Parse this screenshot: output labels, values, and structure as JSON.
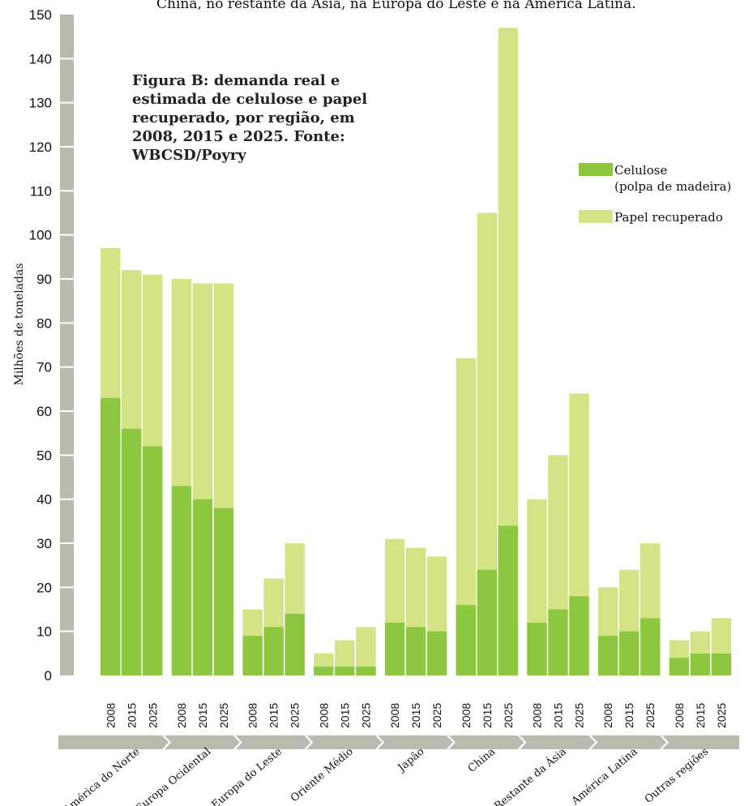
{
  "caption_top": "China, no restante da Ásia, na Europa do Leste e na América Latina.",
  "chart_data": {
    "type": "bar",
    "stacked": true,
    "title": "Figura B: demanda real e estimada de celulose e papel recuperado, por região, em 2008, 2015 e 2025. Fonte: WBCSD/Poyry",
    "title_lines": [
      "Figura B: demanda real e",
      "estimada de celulose e papel",
      "recuperado, por região, em",
      "2008, 2015 e 2025. Fonte:",
      "WBCSD/Poyry"
    ],
    "ylabel": "Milhões de toneladas",
    "ylim": [
      0,
      150
    ],
    "yticks": [
      0,
      10,
      20,
      30,
      40,
      50,
      60,
      70,
      80,
      90,
      100,
      110,
      120,
      130,
      140,
      150
    ],
    "years": [
      "2008",
      "2015",
      "2025"
    ],
    "regions": [
      "América do Norte",
      "Europa Ocidental",
      "Europa do Leste",
      "Oriente Médio",
      "Japão",
      "China",
      "Restante da Ásia",
      "América Latina",
      "Outras regiões"
    ],
    "series": [
      {
        "name": "Celulose (polpa de madeira)",
        "legend_lines": [
          "Celulose",
          "(polpa de madeira)"
        ],
        "color": "#8dc63f",
        "values": [
          [
            63,
            56,
            52
          ],
          [
            43,
            40,
            38
          ],
          [
            9,
            11,
            14
          ],
          [
            2,
            2,
            2
          ],
          [
            12,
            11,
            10
          ],
          [
            16,
            24,
            34
          ],
          [
            12,
            15,
            18
          ],
          [
            9,
            10,
            13
          ],
          [
            4,
            5,
            5
          ]
        ]
      },
      {
        "name": "Papel recuperado",
        "legend_lines": [
          "Papel recuperado"
        ],
        "color": "#d5e387",
        "values": [
          [
            34,
            36,
            39
          ],
          [
            47,
            49,
            51
          ],
          [
            6,
            11,
            16
          ],
          [
            3,
            6,
            9
          ],
          [
            19,
            18,
            17
          ],
          [
            56,
            81,
            113
          ],
          [
            28,
            35,
            46
          ],
          [
            11,
            14,
            17
          ],
          [
            4,
            5,
            8
          ]
        ]
      }
    ],
    "legend_position": "right",
    "grid": false
  }
}
